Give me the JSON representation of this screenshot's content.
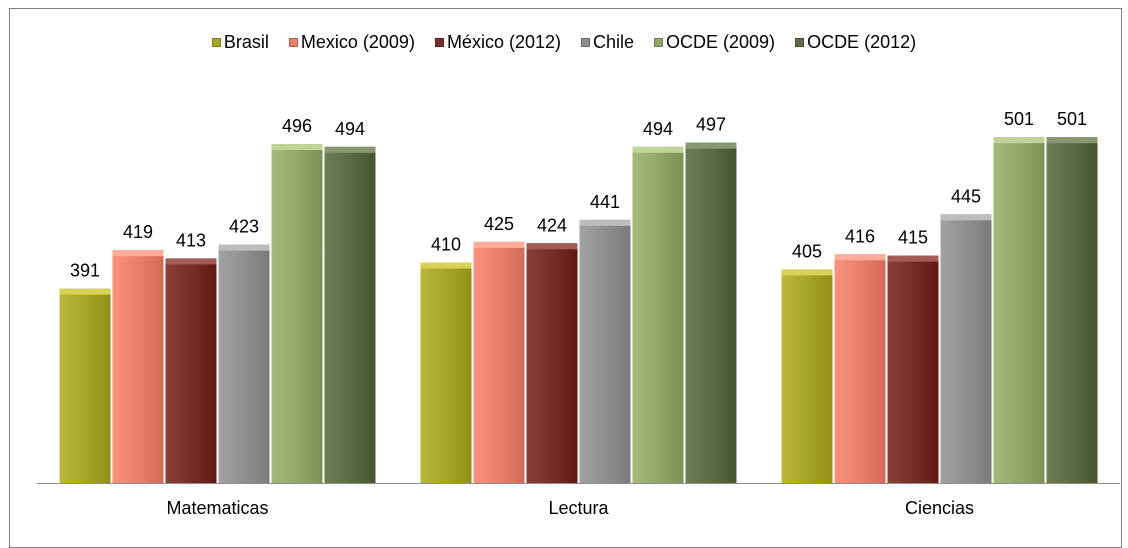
{
  "chart_data": {
    "type": "bar",
    "categories": [
      "Matematicas",
      "Lectura",
      "Ciencias"
    ],
    "series": [
      {
        "name": "Brasil",
        "values": [
          391,
          410,
          405
        ],
        "color": "#a8a52a"
      },
      {
        "name": "Mexico (2009)",
        "values": [
          419,
          425,
          416
        ],
        "color": "#e8806c"
      },
      {
        "name": "México (2012)",
        "values": [
          413,
          424,
          415
        ],
        "color": "#772e26"
      },
      {
        "name": "Chile",
        "values": [
          423,
          441,
          445
        ],
        "color": "#909090"
      },
      {
        "name": "OCDE (2009)",
        "values": [
          496,
          494,
          501
        ],
        "color": "#93a76b"
      },
      {
        "name": "OCDE (2012)",
        "values": [
          494,
          497,
          501
        ],
        "color": "#5d6b45"
      }
    ],
    "title": "",
    "xlabel": "",
    "ylabel": "",
    "ylim": [
      250,
      520
    ],
    "legend_position": "top",
    "grid": false,
    "data_labels": true
  }
}
